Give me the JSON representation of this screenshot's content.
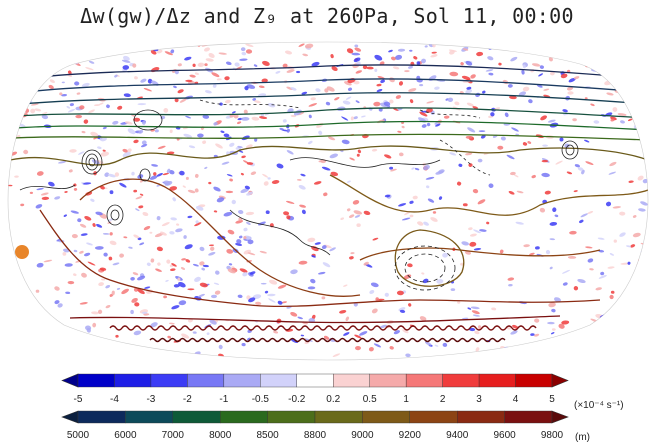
{
  "title": "Δw(gw)/Δz and Z₉ at 260Pa, Sol 11, 00:00",
  "colorbar_divergence": {
    "unit": "(×10⁻⁴ s⁻¹)",
    "ticks": [
      "-5",
      "-4",
      "-3",
      "-2",
      "-1",
      "-0.5",
      "-0.2",
      "0.2",
      "0.5",
      "1",
      "2",
      "3",
      "4",
      "5"
    ],
    "colors": [
      "#00008b",
      "#0000c8",
      "#1e1ee6",
      "#3c3cf5",
      "#7878f5",
      "#aaaaf5",
      "#d2d2fa",
      "#ffffff",
      "#fad2d2",
      "#f5aaaa",
      "#f57878",
      "#f03c3c",
      "#e61e1e",
      "#c80000",
      "#8b0000"
    ]
  },
  "colorbar_height": {
    "unit": "(m)",
    "ticks": [
      "5000",
      "6000",
      "7000",
      "8000",
      "8500",
      "8800",
      "9000",
      "9200",
      "9400",
      "9600",
      "9800"
    ],
    "colors": [
      "#0b1f3f",
      "#0d2a5c",
      "#0d4a5a",
      "#0e5a38",
      "#2a6a1e",
      "#4c6e1a",
      "#6a6a1a",
      "#7e5a18",
      "#8c4414",
      "#8a2a12",
      "#7a1010",
      "#5a0a0a"
    ]
  },
  "marker_color": "#e8852a"
}
